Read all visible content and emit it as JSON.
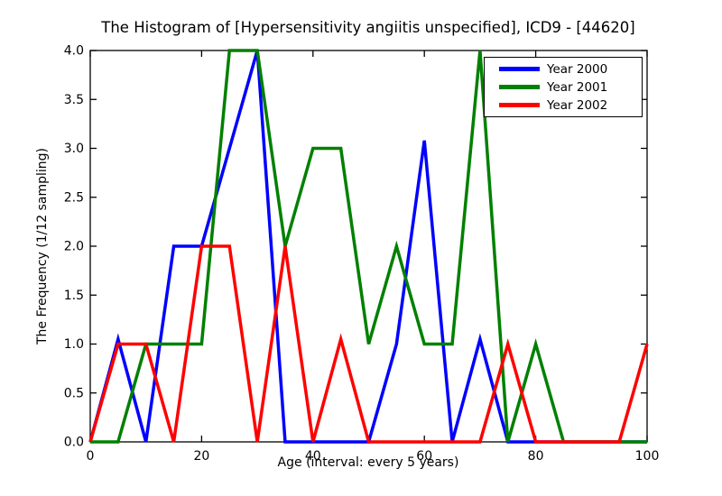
{
  "chart_data": {
    "type": "line",
    "title": "The Histogram of [Hypersensitivity angiitis unspecified], ICD9 - [44620]",
    "xlabel": "Age (interval: every 5 years)",
    "ylabel": "The Frequency (1/12 sampling)",
    "x": [
      0,
      5,
      10,
      15,
      20,
      25,
      30,
      35,
      40,
      45,
      50,
      55,
      60,
      65,
      70,
      75,
      80,
      85,
      90,
      95,
      100
    ],
    "series": [
      {
        "name": "Year 2000",
        "color": "#0000ff",
        "values": [
          0,
          1.05,
          0,
          2,
          2,
          3,
          4,
          0,
          0,
          0,
          0,
          1,
          3.08,
          0,
          1.05,
          0,
          0,
          0,
          0,
          0,
          0
        ]
      },
      {
        "name": "Year 2001",
        "color": "#008000",
        "values": [
          0,
          0,
          1,
          1,
          1,
          4,
          4,
          2,
          3,
          3,
          1,
          2,
          1,
          1,
          4,
          0,
          1,
          0,
          0,
          0,
          0
        ]
      },
      {
        "name": "Year 2002",
        "color": "#ff0000",
        "values": [
          0,
          1,
          1,
          0,
          2,
          2,
          0,
          2,
          0,
          1.05,
          0,
          0,
          0,
          0,
          0,
          1,
          0,
          0,
          0,
          0,
          1
        ]
      }
    ],
    "xlim": [
      0,
      100
    ],
    "ylim": [
      0,
      4
    ],
    "xticks": [
      "0",
      "20",
      "40",
      "60",
      "80",
      "100"
    ],
    "yticks": [
      "0.0",
      "0.5",
      "1.0",
      "1.5",
      "2.0",
      "2.5",
      "3.0",
      "3.5",
      "4.0"
    ],
    "legend_position": "upper right",
    "grid": false,
    "axis_color": "#000000"
  }
}
